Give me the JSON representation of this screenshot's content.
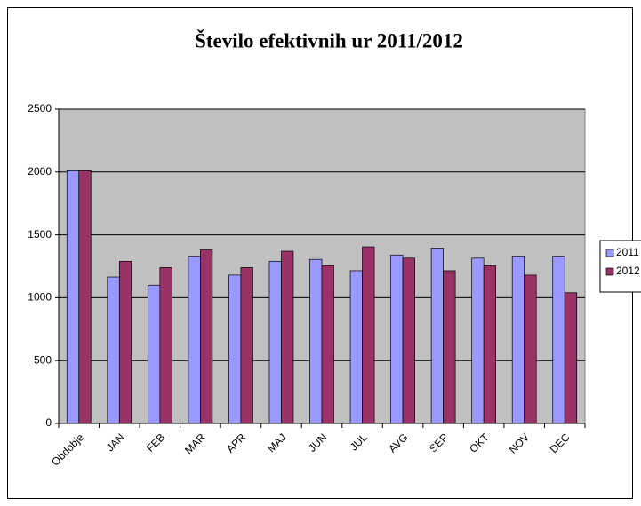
{
  "chart_data": {
    "type": "bar",
    "title": "Število efektivnih ur 2011/2012",
    "categories": [
      "Obdobje",
      "JAN",
      "FEB",
      "MAR",
      "APR",
      "MAJ",
      "JUN",
      "JUL",
      "AVG",
      "SEP",
      "OKT",
      "NOV",
      "DEC"
    ],
    "series": [
      {
        "name": "2011",
        "color": "#9999ff",
        "values": [
          2010,
          1165,
          1100,
          1330,
          1180,
          1290,
          1305,
          1215,
          1340,
          1395,
          1315,
          1330,
          1330
        ]
      },
      {
        "name": "2012",
        "color": "#993366",
        "values": [
          2010,
          1290,
          1240,
          1380,
          1240,
          1370,
          1255,
          1405,
          1315,
          1215,
          1255,
          1180,
          1040
        ]
      }
    ],
    "ylim": [
      0,
      2500
    ],
    "yticks": [
      0,
      500,
      1000,
      1500,
      2000,
      2500
    ],
    "grid": true,
    "legend": "right"
  }
}
